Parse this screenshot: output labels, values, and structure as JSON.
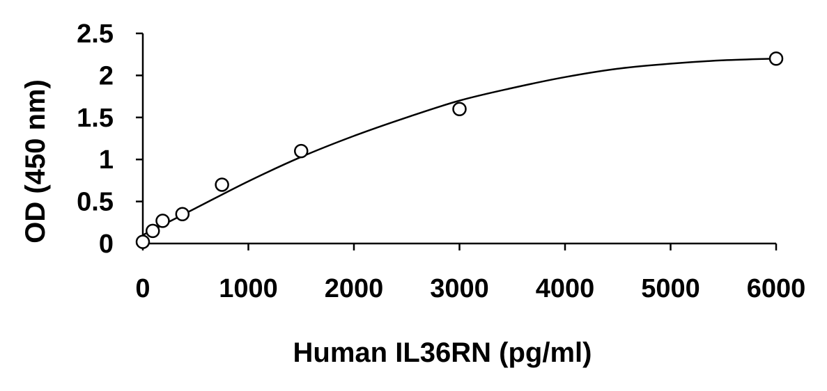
{
  "chart_data": {
    "type": "scatter",
    "title": "",
    "xlabel": "Human IL36RN (pg/ml)",
    "ylabel": "OD (450 nm)",
    "xlim": [
      0,
      6000
    ],
    "ylim": [
      0,
      2.5
    ],
    "x_ticks": [
      0,
      1000,
      2000,
      3000,
      4000,
      5000,
      6000
    ],
    "x_tick_labels": [
      "0",
      "1000",
      "2000",
      "3000",
      "4000",
      "5000",
      "6000"
    ],
    "y_ticks": [
      0,
      0.5,
      1,
      1.5,
      2,
      2.5
    ],
    "y_tick_labels": [
      "0",
      "0.5",
      "1",
      "1.5",
      "2",
      "2.5"
    ],
    "grid": false,
    "legend": "none",
    "series": [
      {
        "marker": "open-circle",
        "x": [
          0,
          94,
          188,
          375,
          750,
          1500,
          3000,
          6000
        ],
        "y": [
          0.02,
          0.15,
          0.27,
          0.35,
          0.7,
          1.1,
          1.6,
          2.2
        ]
      }
    ],
    "fit_curve": {
      "type": "smooth-fit",
      "x": [
        0,
        500,
        1000,
        1500,
        2000,
        2500,
        3000,
        3500,
        4000,
        4500,
        5000,
        5500,
        6000
      ],
      "y": [
        0.1,
        0.42,
        0.74,
        1.03,
        1.28,
        1.5,
        1.7,
        1.85,
        1.98,
        2.08,
        2.14,
        2.18,
        2.2
      ]
    },
    "colors": {
      "line": "#000000",
      "marker_fill": "#ffffff",
      "marker_stroke": "#000000"
    }
  }
}
